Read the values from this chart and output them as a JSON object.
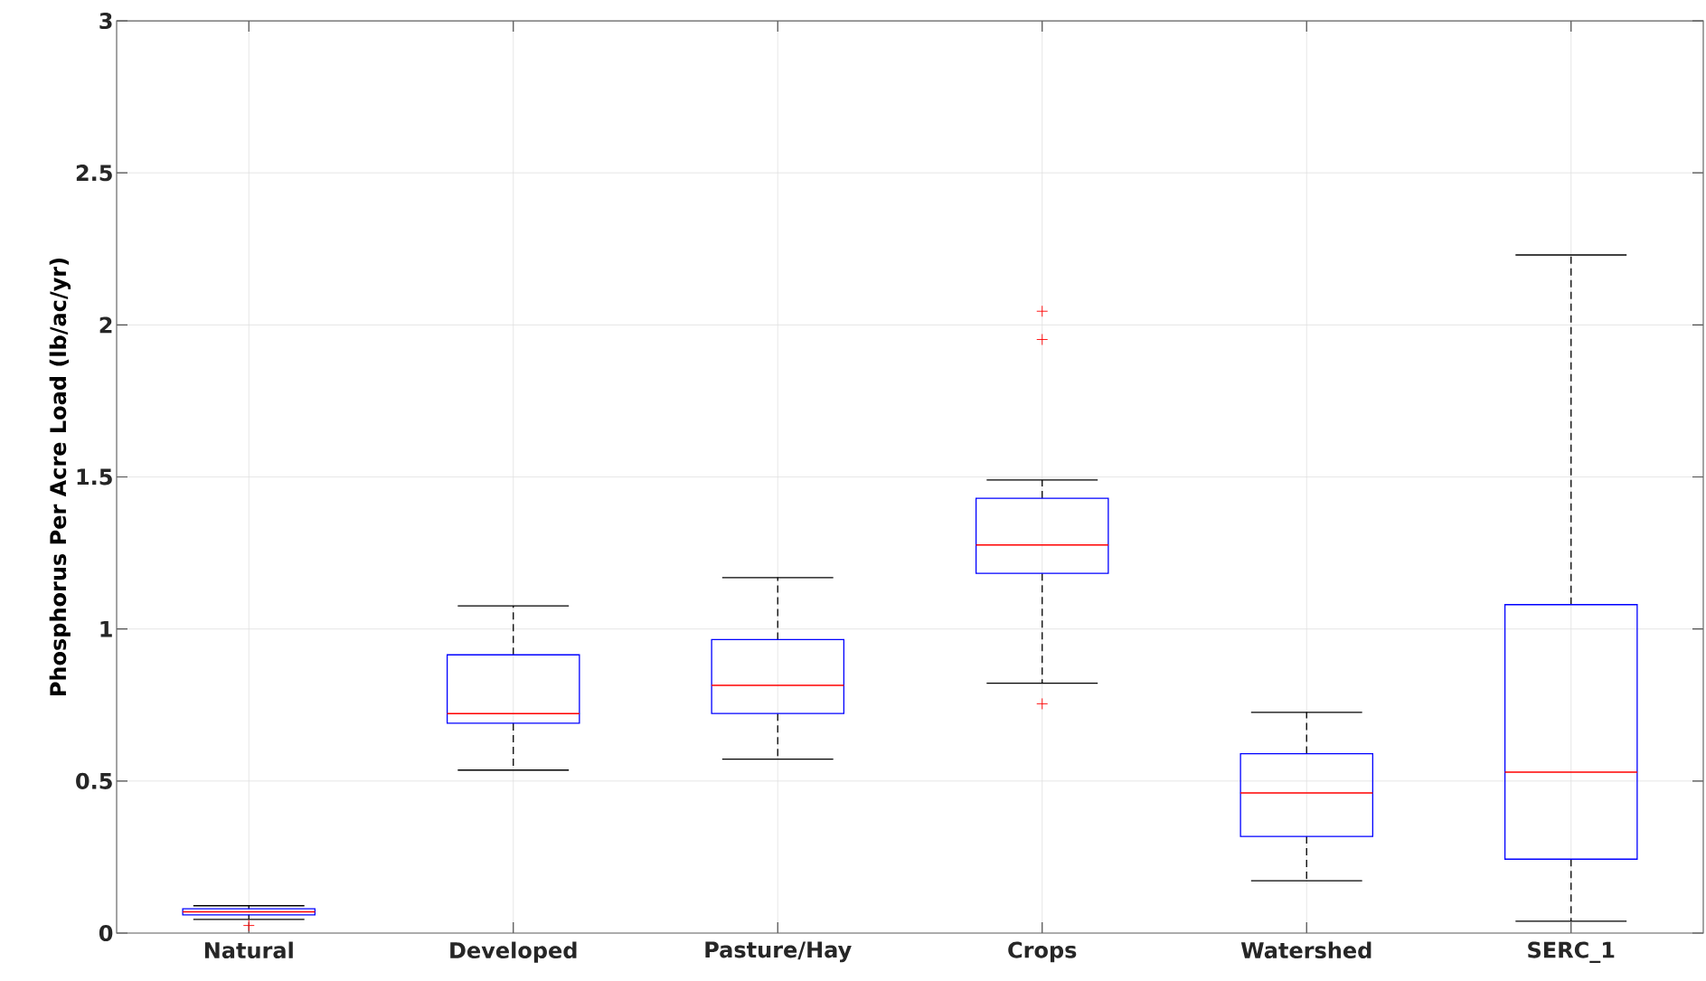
{
  "chart_data": {
    "type": "box",
    "ylabel": "Phosphorus Per Acre Load (lb/ac/yr)",
    "categories": [
      "Natural",
      "Developed",
      "Pasture/Hay",
      "Crops",
      "Watershed",
      "SERC_1"
    ],
    "boxes": [
      {
        "low": 0.045,
        "q1": 0.06,
        "median": 0.07,
        "q3": 0.08,
        "high": 0.09,
        "outliers": [
          0.025
        ]
      },
      {
        "low": 0.536,
        "q1": 0.69,
        "median": 0.722,
        "q3": 0.915,
        "high": 1.076
      },
      {
        "low": 0.572,
        "q1": 0.722,
        "median": 0.815,
        "q3": 0.965,
        "high": 1.169
      },
      {
        "low": 0.822,
        "q1": 1.183,
        "median": 1.276,
        "q3": 1.43,
        "high": 1.49,
        "outliers": [
          2.045,
          1.952,
          0.754
        ]
      },
      {
        "low": 0.172,
        "q1": 0.318,
        "median": 0.461,
        "q3": 0.59,
        "high": 0.726
      },
      {
        "low": 0.039,
        "q1": 0.243,
        "median": 0.529,
        "q3": 1.08,
        "high": 2.23
      }
    ],
    "ylim": [
      0,
      3
    ],
    "yticks": [
      0,
      0.5,
      1,
      1.5,
      2,
      2.5,
      3
    ],
    "grid": true
  }
}
